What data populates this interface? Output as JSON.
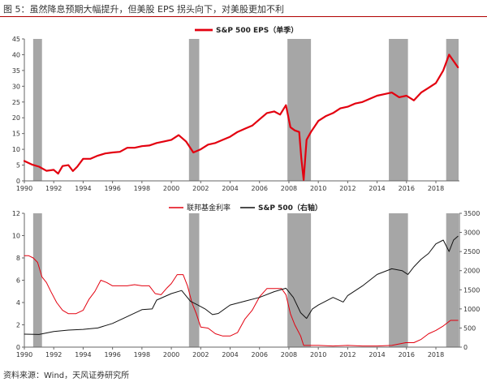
{
  "figure": {
    "title": "图 5：虽然降息预期大幅提升，但美股 EPS 拐头向下，对美股更加不利",
    "source": "资料来源：Wind，天风证券研究所"
  },
  "colors": {
    "eps": "#e3000f",
    "fed": "#e3000f",
    "sp500": "#111111",
    "recession": "#a6a6a6",
    "axis": "#666666"
  },
  "chart_data": [
    {
      "type": "line",
      "legend_position": "top-center",
      "grid": false,
      "recession_shading": [
        [
          1990.6,
          1991.2
        ],
        [
          2001.2,
          2001.9
        ],
        [
          2007.9,
          2009.5
        ],
        [
          2014.8,
          2016.1
        ],
        [
          2018.7,
          2019.6
        ]
      ],
      "x_range": [
        1990,
        2019.6
      ],
      "x_ticks": [
        "1990",
        "1992",
        "1994",
        "1996",
        "1998",
        "2000",
        "2002",
        "2004",
        "2006",
        "2008",
        "2010",
        "2012",
        "2014",
        "2016",
        "2018"
      ],
      "ylim": [
        0,
        45
      ],
      "y_ticks": [
        "0",
        "5",
        "10",
        "15",
        "20",
        "25",
        "30",
        "35",
        "40",
        "45"
      ],
      "series": [
        {
          "name": "S&P 500 EPS（单季）",
          "x": [
            1990.0,
            1990.5,
            1991.0,
            1991.5,
            1992.0,
            1992.3,
            1992.6,
            1993.0,
            1993.3,
            1993.6,
            1994.0,
            1994.5,
            1995.0,
            1995.5,
            1996.0,
            1996.5,
            1997.0,
            1997.5,
            1998.0,
            1998.5,
            1999.0,
            1999.5,
            2000.0,
            2000.5,
            2001.0,
            2001.5,
            2002.0,
            2002.5,
            2003.0,
            2003.5,
            2004.0,
            2004.5,
            2005.0,
            2005.5,
            2006.0,
            2006.5,
            2007.0,
            2007.4,
            2007.8,
            2008.1,
            2008.4,
            2008.7,
            2008.85,
            2009.0,
            2009.2,
            2009.5,
            2010.0,
            2010.5,
            2011.0,
            2011.5,
            2012.0,
            2012.5,
            2013.0,
            2013.5,
            2014.0,
            2014.5,
            2015.0,
            2015.5,
            2016.0,
            2016.5,
            2017.0,
            2017.5,
            2018.0,
            2018.5,
            2018.9,
            2019.5
          ],
          "values": [
            6.3,
            5.2,
            4.5,
            3.2,
            3.5,
            2.3,
            4.7,
            5.0,
            3.1,
            4.5,
            7.0,
            7.0,
            8.0,
            8.7,
            9.0,
            9.2,
            10.5,
            10.5,
            11.0,
            11.2,
            12.0,
            12.5,
            13.0,
            14.5,
            12.5,
            9.0,
            10.0,
            11.5,
            12.0,
            13.0,
            14.0,
            15.5,
            16.5,
            17.5,
            19.5,
            21.5,
            22.0,
            21.0,
            24.0,
            17.0,
            16.0,
            15.5,
            7.0,
            0.3,
            13.0,
            15.5,
            19.0,
            20.5,
            21.5,
            23.0,
            23.5,
            24.5,
            25.0,
            26.0,
            27.0,
            27.5,
            28.0,
            26.5,
            27.0,
            25.5,
            28.0,
            29.5,
            31.0,
            35.0,
            40.0,
            36.0
          ]
        }
      ]
    },
    {
      "type": "line",
      "legend_position": "top-center",
      "grid": false,
      "recession_shading": [
        [
          1990.6,
          1991.2
        ],
        [
          2001.2,
          2001.9
        ],
        [
          2007.9,
          2009.5
        ],
        [
          2014.8,
          2016.1
        ],
        [
          2018.7,
          2019.6
        ]
      ],
      "x_range": [
        1990,
        2019.6
      ],
      "x_ticks": [
        "1990",
        "1992",
        "1994",
        "1996",
        "1998",
        "2000",
        "2002",
        "2004",
        "2006",
        "2008",
        "2010",
        "2012",
        "2014",
        "2016",
        "2018"
      ],
      "ylim": [
        0,
        12
      ],
      "y_ticks": [
        "0",
        "2",
        "4",
        "6",
        "8",
        "10",
        "12"
      ],
      "y2lim": [
        0,
        3500
      ],
      "y2_ticks": [
        "0",
        "500",
        "1000",
        "1500",
        "2000",
        "2500",
        "3000",
        "3500"
      ],
      "series": [
        {
          "name": "联邦基金利率",
          "axis": "left",
          "x": [
            1990.0,
            1990.3,
            1990.6,
            1990.9,
            1991.2,
            1991.5,
            1991.8,
            1992.2,
            1992.6,
            1993.0,
            1993.5,
            1994.0,
            1994.4,
            1994.8,
            1995.2,
            1995.6,
            1996.0,
            1996.5,
            1997.0,
            1997.5,
            1998.0,
            1998.5,
            1998.9,
            1999.3,
            1999.7,
            2000.0,
            2000.4,
            2000.8,
            2001.1,
            2001.4,
            2001.7,
            2002.0,
            2002.5,
            2003.0,
            2003.5,
            2004.0,
            2004.5,
            2005.0,
            2005.5,
            2006.0,
            2006.5,
            2007.0,
            2007.5,
            2007.8,
            2008.1,
            2008.4,
            2008.8,
            2009.0,
            2010.0,
            2011.0,
            2012.0,
            2013.0,
            2014.0,
            2015.0,
            2015.95,
            2016.5,
            2017.0,
            2017.5,
            2018.0,
            2018.5,
            2019.0,
            2019.5
          ],
          "values": [
            8.2,
            8.2,
            8.0,
            7.6,
            6.3,
            5.8,
            5.0,
            4.0,
            3.3,
            3.0,
            3.0,
            3.3,
            4.3,
            5.0,
            6.0,
            5.8,
            5.5,
            5.5,
            5.5,
            5.6,
            5.5,
            5.5,
            4.8,
            4.7,
            5.3,
            5.7,
            6.5,
            6.5,
            5.5,
            4.0,
            3.0,
            1.8,
            1.7,
            1.2,
            1.0,
            1.0,
            1.3,
            2.5,
            3.3,
            4.5,
            5.25,
            5.25,
            5.25,
            4.7,
            3.0,
            2.0,
            1.0,
            0.15,
            0.15,
            0.1,
            0.15,
            0.1,
            0.1,
            0.15,
            0.4,
            0.4,
            0.7,
            1.2,
            1.5,
            1.9,
            2.4,
            2.4
          ]
        },
        {
          "name": "S&P 500（右轴）",
          "axis": "right",
          "x": [
            1990.0,
            1991.0,
            1992.0,
            1993.0,
            1994.0,
            1995.0,
            1996.0,
            1997.0,
            1998.0,
            1998.7,
            1999.0,
            2000.0,
            2000.7,
            2001.3,
            2001.8,
            2002.3,
            2002.8,
            2003.2,
            2004.0,
            2005.0,
            2006.0,
            2007.0,
            2007.8,
            2008.3,
            2008.8,
            2009.2,
            2009.6,
            2010.0,
            2011.0,
            2011.7,
            2012.0,
            2013.0,
            2014.0,
            2015.0,
            2015.7,
            2016.1,
            2016.5,
            2017.0,
            2017.5,
            2018.0,
            2018.5,
            2018.9,
            2019.2,
            2019.5
          ],
          "values": [
            340,
            330,
            410,
            445,
            465,
            500,
            620,
            800,
            980,
            1000,
            1230,
            1400,
            1480,
            1200,
            1100,
            1000,
            850,
            880,
            1100,
            1200,
            1300,
            1450,
            1540,
            1300,
            900,
            750,
            1000,
            1100,
            1300,
            1180,
            1350,
            1600,
            1900,
            2050,
            2000,
            1900,
            2100,
            2300,
            2450,
            2700,
            2800,
            2500,
            2800,
            2900
          ]
        }
      ]
    }
  ]
}
